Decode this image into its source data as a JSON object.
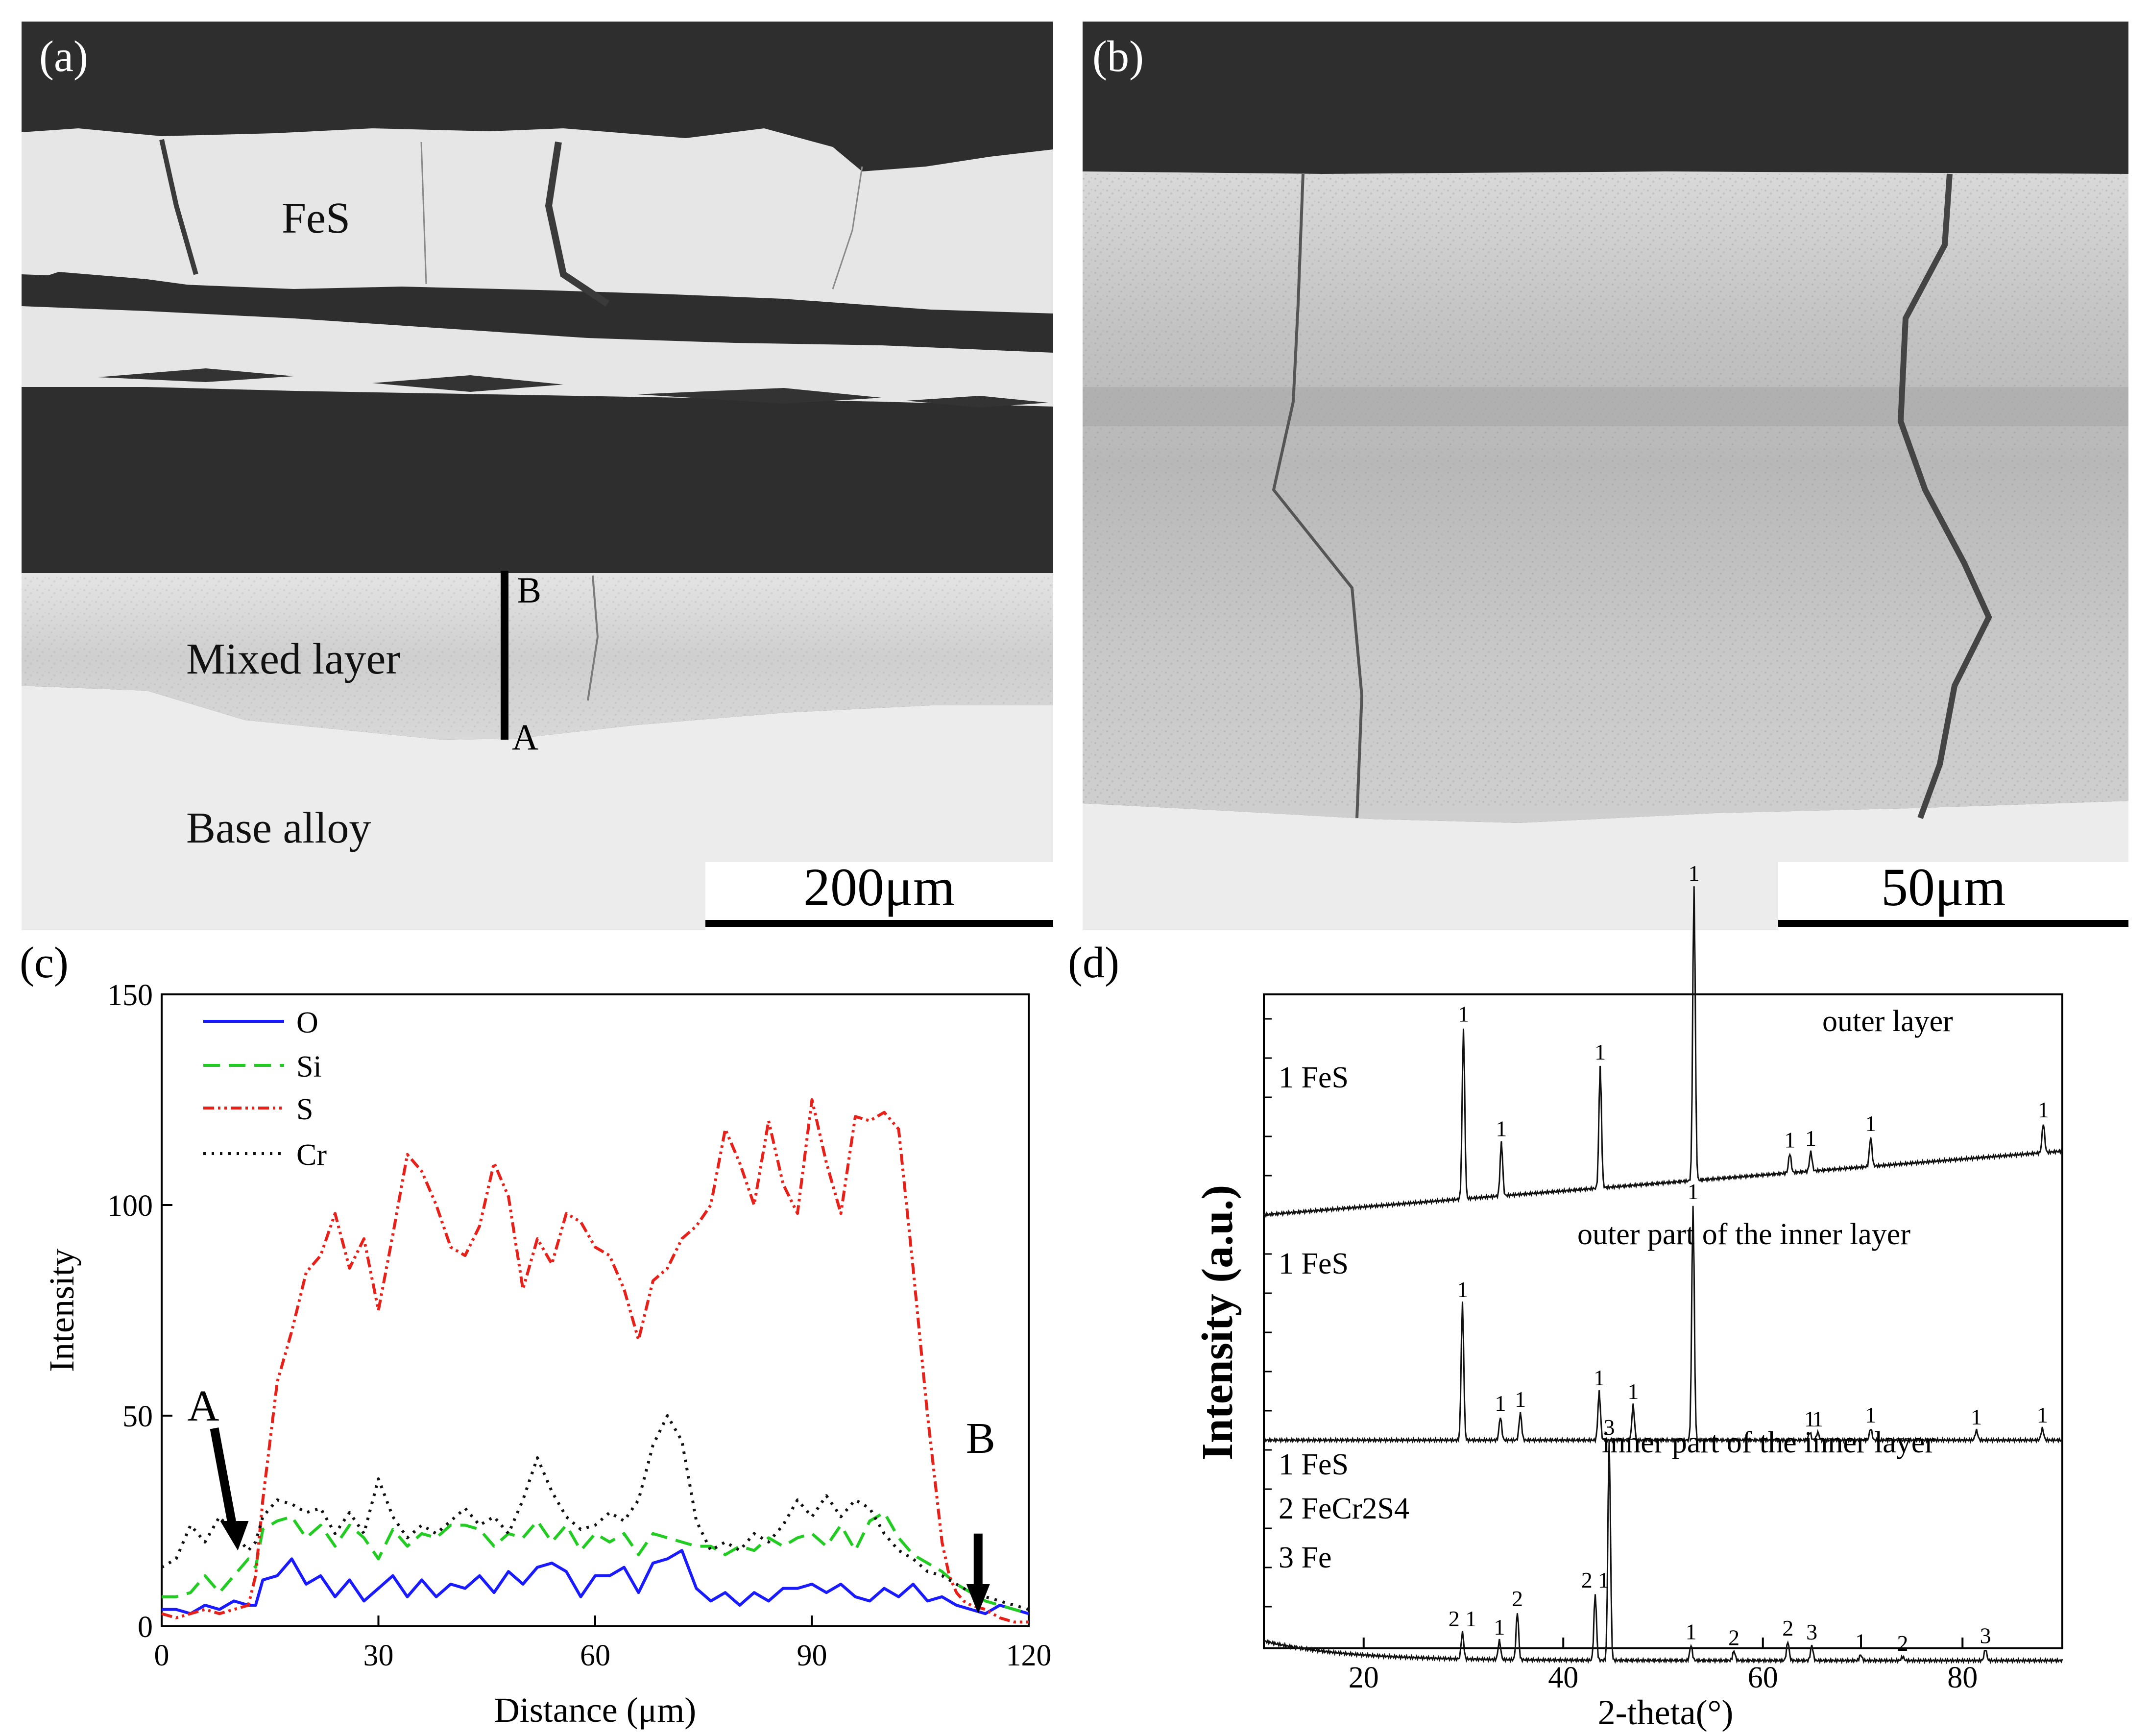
{
  "panels": {
    "a": {
      "label": "(a)",
      "regions": [
        "FeS",
        "Mixed layer",
        "Base alloy"
      ],
      "line_scan_ends": [
        "B",
        "A"
      ],
      "scale_bar": "200μm"
    },
    "b": {
      "label": "(b)",
      "scale_bar": "50μm"
    },
    "c": {
      "label": "(c)"
    },
    "d": {
      "label": "(d)"
    }
  },
  "chart_data": [
    {
      "id": "c",
      "type": "line",
      "title": "",
      "xlabel": "Distance (μm)",
      "ylabel": "Intensity",
      "xlim": [
        0,
        120
      ],
      "ylim": [
        0,
        150
      ],
      "xticks": [
        0,
        30,
        60,
        90,
        120
      ],
      "yticks": [
        0,
        50,
        100,
        150
      ],
      "legend_position": "top-left",
      "annotations": [
        "A",
        "B"
      ],
      "annotation_x": [
        10,
        113
      ],
      "series": [
        {
          "name": "O",
          "color": "#1a1aff",
          "dash": "solid",
          "x": [
            0,
            2,
            4,
            6,
            8,
            10,
            12,
            13,
            14,
            16,
            18,
            20,
            22,
            24,
            26,
            28,
            30,
            32,
            34,
            36,
            38,
            40,
            42,
            44,
            46,
            48,
            50,
            52,
            54,
            56,
            58,
            60,
            62,
            64,
            66,
            68,
            70,
            72,
            74,
            76,
            78,
            80,
            82,
            84,
            86,
            88,
            90,
            92,
            94,
            96,
            98,
            100,
            102,
            104,
            106,
            108,
            110,
            112,
            114,
            116,
            118,
            120
          ],
          "y": [
            4,
            4,
            3,
            5,
            4,
            6,
            5,
            5,
            11,
            12,
            16,
            10,
            12,
            7,
            11,
            6,
            9,
            12,
            7,
            11,
            7,
            10,
            9,
            12,
            8,
            13,
            10,
            14,
            15,
            13,
            7,
            12,
            12,
            14,
            8,
            15,
            16,
            18,
            9,
            6,
            8,
            5,
            8,
            6,
            9,
            9,
            10,
            8,
            10,
            7,
            6,
            9,
            7,
            10,
            6,
            7,
            5,
            4,
            3,
            5,
            4,
            3
          ]
        },
        {
          "name": "Si",
          "color": "#22cc22",
          "dash": "dashed",
          "x": [
            0,
            2,
            4,
            6,
            8,
            10,
            12,
            13,
            14,
            16,
            18,
            20,
            22,
            24,
            26,
            28,
            30,
            32,
            34,
            36,
            38,
            40,
            42,
            44,
            46,
            48,
            50,
            52,
            54,
            56,
            58,
            60,
            62,
            64,
            66,
            68,
            70,
            72,
            74,
            76,
            78,
            80,
            82,
            84,
            86,
            88,
            90,
            92,
            94,
            96,
            98,
            100,
            102,
            104,
            106,
            108,
            110,
            112,
            114,
            116,
            118,
            120
          ],
          "y": [
            7,
            7,
            8,
            12,
            8,
            12,
            16,
            14,
            23,
            25,
            26,
            21,
            24,
            19,
            24,
            21,
            16,
            23,
            19,
            22,
            21,
            24,
            24,
            23,
            19,
            22,
            21,
            25,
            20,
            24,
            18,
            22,
            20,
            22,
            17,
            22,
            21,
            20,
            19,
            19,
            17,
            19,
            18,
            21,
            19,
            21,
            22,
            19,
            24,
            18,
            25,
            27,
            21,
            17,
            15,
            13,
            10,
            8,
            6,
            5,
            4,
            3
          ]
        },
        {
          "name": "S",
          "color": "#e8201a",
          "dash": "dash-dot-dot",
          "x": [
            0,
            2,
            4,
            6,
            8,
            10,
            12,
            13,
            14,
            16,
            18,
            20,
            22,
            24,
            26,
            28,
            30,
            32,
            34,
            36,
            38,
            40,
            42,
            44,
            46,
            48,
            50,
            52,
            54,
            56,
            58,
            60,
            62,
            64,
            66,
            68,
            70,
            72,
            74,
            76,
            78,
            80,
            82,
            84,
            86,
            88,
            90,
            92,
            94,
            96,
            98,
            100,
            102,
            104,
            106,
            108,
            109,
            110,
            111,
            112,
            114,
            116,
            118,
            120
          ],
          "y": [
            3,
            2,
            3,
            4,
            3,
            4,
            5,
            12,
            30,
            58,
            70,
            84,
            88,
            98,
            85,
            92,
            75,
            93,
            112,
            108,
            100,
            90,
            88,
            95,
            110,
            102,
            80,
            92,
            86,
            98,
            96,
            90,
            88,
            80,
            68,
            82,
            85,
            92,
            95,
            100,
            118,
            110,
            100,
            120,
            105,
            98,
            125,
            110,
            98,
            121,
            120,
            122,
            118,
            85,
            50,
            20,
            12,
            8,
            6,
            5,
            4,
            2,
            1,
            1
          ]
        },
        {
          "name": "Cr",
          "color": "#111111",
          "dash": "dotted",
          "x": [
            0,
            2,
            4,
            6,
            8,
            10,
            12,
            13,
            14,
            16,
            18,
            20,
            22,
            24,
            26,
            28,
            30,
            32,
            34,
            36,
            38,
            40,
            42,
            44,
            46,
            48,
            50,
            52,
            54,
            56,
            58,
            60,
            62,
            64,
            66,
            68,
            70,
            72,
            74,
            76,
            78,
            80,
            82,
            84,
            86,
            88,
            90,
            92,
            94,
            96,
            98,
            100,
            102,
            104,
            106,
            108,
            110,
            112,
            114,
            116,
            118,
            120
          ],
          "y": [
            14,
            16,
            24,
            20,
            26,
            22,
            18,
            20,
            26,
            30,
            29,
            27,
            28,
            22,
            27,
            22,
            35,
            26,
            21,
            24,
            22,
            25,
            28,
            24,
            26,
            22,
            30,
            40,
            32,
            26,
            23,
            24,
            27,
            25,
            30,
            43,
            50,
            44,
            25,
            18,
            20,
            18,
            22,
            20,
            24,
            30,
            26,
            31,
            26,
            30,
            28,
            22,
            18,
            16,
            13,
            12,
            10,
            8,
            7,
            6,
            5,
            4
          ]
        }
      ]
    },
    {
      "id": "d",
      "type": "line",
      "title": "",
      "xlabel": "2-theta(°)",
      "ylabel": "Intensity (a.u.)",
      "xlim": [
        10,
        90
      ],
      "xticks": [
        20,
        40,
        60,
        80
      ],
      "patterns": [
        {
          "name": "outer layer",
          "phases": [
            "1 FeS"
          ],
          "peaks": [
            {
              "x": 30.0,
              "h": 0.7,
              "label": "1"
            },
            {
              "x": 33.8,
              "h": 0.22,
              "label": "1"
            },
            {
              "x": 43.7,
              "h": 0.5,
              "label": "1"
            },
            {
              "x": 53.1,
              "h": 1.2,
              "label": "1"
            },
            {
              "x": 62.7,
              "h": 0.08,
              "label": "1"
            },
            {
              "x": 64.8,
              "h": 0.08,
              "label": "1"
            },
            {
              "x": 70.8,
              "h": 0.12,
              "label": "1"
            },
            {
              "x": 88.1,
              "h": 0.12,
              "label": "1"
            }
          ]
        },
        {
          "name": "outer part of the inner layer",
          "phases": [
            "1 FeS"
          ],
          "peaks": [
            {
              "x": 29.9,
              "h": 0.7,
              "label": "1"
            },
            {
              "x": 33.7,
              "h": 0.12,
              "label": "1"
            },
            {
              "x": 35.7,
              "h": 0.14,
              "label": "1"
            },
            {
              "x": 43.6,
              "h": 0.25,
              "label": "1"
            },
            {
              "x": 47.0,
              "h": 0.18,
              "label": "1"
            },
            {
              "x": 53.0,
              "h": 1.2,
              "label": "1"
            },
            {
              "x": 64.7,
              "h": 0.04,
              "label": "1"
            },
            {
              "x": 65.5,
              "h": 0.04,
              "label": "1"
            },
            {
              "x": 70.8,
              "h": 0.06,
              "label": "1"
            },
            {
              "x": 81.4,
              "h": 0.05,
              "label": "1"
            },
            {
              "x": 88.0,
              "h": 0.06,
              "label": "1"
            }
          ]
        },
        {
          "name": "inner part of the inner layer",
          "phases": [
            "1 FeS",
            "2 FeCr2S4",
            "3 Fe"
          ],
          "peaks": [
            {
              "x": 29.9,
              "h": 0.14,
              "label": "2 1"
            },
            {
              "x": 33.6,
              "h": 0.1,
              "label": "1"
            },
            {
              "x": 35.4,
              "h": 0.25,
              "label": "2"
            },
            {
              "x": 43.2,
              "h": 0.35,
              "label": "2 1"
            },
            {
              "x": 44.6,
              "h": 1.15,
              "label": "3"
            },
            {
              "x": 52.8,
              "h": 0.08,
              "label": "1"
            },
            {
              "x": 57.1,
              "h": 0.05,
              "label": "2"
            },
            {
              "x": 62.5,
              "h": 0.1,
              "label": "2"
            },
            {
              "x": 64.9,
              "h": 0.08,
              "label": "3"
            },
            {
              "x": 69.8,
              "h": 0.03,
              "label": "1"
            },
            {
              "x": 74.0,
              "h": 0.02,
              "label": "2"
            },
            {
              "x": 82.3,
              "h": 0.06,
              "label": "3"
            }
          ]
        }
      ]
    }
  ]
}
